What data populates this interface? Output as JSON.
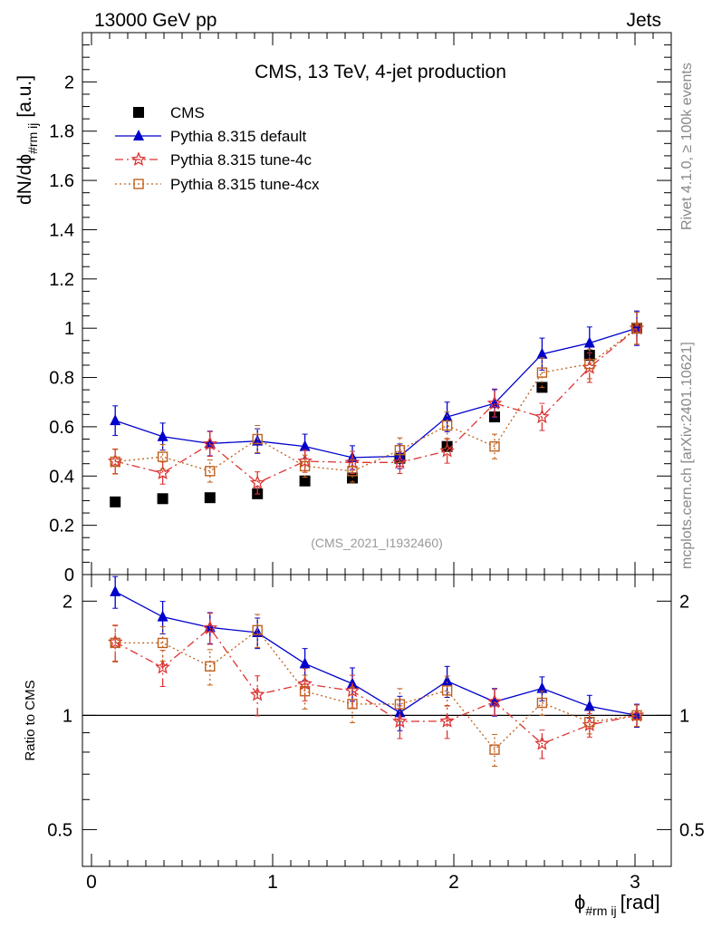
{
  "header": {
    "energy_label": "13000 GeV pp",
    "category_label": "Jets",
    "rivet_label": "Rivet 4.1.0, ≥ 100k events",
    "mcplots_label": "mcplots.cern.ch [arXiv:2401.10621]"
  },
  "chart_data": {
    "type": "scatter",
    "title": "CMS, 13 TeV, 4-jet production",
    "analysis_label": "(CMS_2021_I1932460)",
    "xlabel": "ϕ",
    "xlabel_sub": "#rm ij",
    "xlabel_unit": "[rad]",
    "ylabel": "dN/dϕ",
    "ylabel_sub": "#rm ij",
    "ylabel_unit": "[a.u.]",
    "ratio_ylabel": "Ratio to CMS",
    "xlim": [
      -0.05,
      3.2
    ],
    "ylim": [
      0,
      2.2
    ],
    "ratio_ylim": [
      0.4,
      2.35
    ],
    "x_ticks": [
      0,
      1,
      2,
      3
    ],
    "y_ticks": [
      0,
      0.2,
      0.4,
      0.6,
      0.8,
      1,
      1.2,
      1.4,
      1.6,
      1.8,
      2
    ],
    "y_tick_labels": [
      "0",
      "0.2",
      "0.4",
      "0.6",
      "0.8",
      "1",
      "1.2",
      "1.4",
      "1.6",
      "1.8",
      "2"
    ],
    "ratio_ticks": [
      0.5,
      1,
      2
    ],
    "ratio_tick_labels": [
      "0.5",
      "1",
      "2"
    ],
    "x": [
      0.131,
      0.393,
      0.654,
      0.916,
      1.178,
      1.44,
      1.702,
      1.963,
      2.225,
      2.487,
      2.749,
      3.01
    ],
    "series": [
      {
        "name": "CMS",
        "marker": "square-filled",
        "color": "#000000",
        "line": "none",
        "values": [
          0.295,
          0.308,
          0.312,
          0.328,
          0.38,
          0.392,
          0.472,
          0.52,
          0.64,
          0.76,
          0.89,
          1.0
        ],
        "errors": [
          0,
          0,
          0,
          0,
          0,
          0,
          0,
          0,
          0,
          0,
          0,
          0
        ]
      },
      {
        "name": "Pythia 8.315 default",
        "marker": "triangle-filled",
        "color": "#0000cc",
        "line": "solid",
        "values": [
          0.625,
          0.56,
          0.532,
          0.542,
          0.52,
          0.475,
          0.48,
          0.64,
          0.695,
          0.895,
          0.94,
          1.0
        ],
        "errors": [
          0.06,
          0.055,
          0.05,
          0.05,
          0.05,
          0.048,
          0.05,
          0.06,
          0.058,
          0.065,
          0.065,
          0.07
        ]
      },
      {
        "name": "Pythia 8.315 tune-4c",
        "marker": "star-open",
        "color": "#dd3333",
        "line": "dashdot",
        "values": [
          0.46,
          0.412,
          0.53,
          0.372,
          0.46,
          0.455,
          0.455,
          0.502,
          0.695,
          0.64,
          0.84,
          1.0
        ],
        "errors": [
          0.05,
          0.045,
          0.05,
          0.045,
          0.045,
          0.045,
          0.045,
          0.05,
          0.055,
          0.055,
          0.06,
          0.065
        ]
      },
      {
        "name": "Pythia 8.315 tune-4cx",
        "marker": "square-open",
        "color": "#c0601c",
        "line": "dotted",
        "values": [
          0.458,
          0.478,
          0.42,
          0.55,
          0.44,
          0.42,
          0.505,
          0.605,
          0.52,
          0.82,
          0.855,
          1.0
        ],
        "errors": [
          0.05,
          0.05,
          0.045,
          0.055,
          0.045,
          0.045,
          0.05,
          0.055,
          0.05,
          0.06,
          0.06,
          0.065
        ]
      }
    ]
  }
}
